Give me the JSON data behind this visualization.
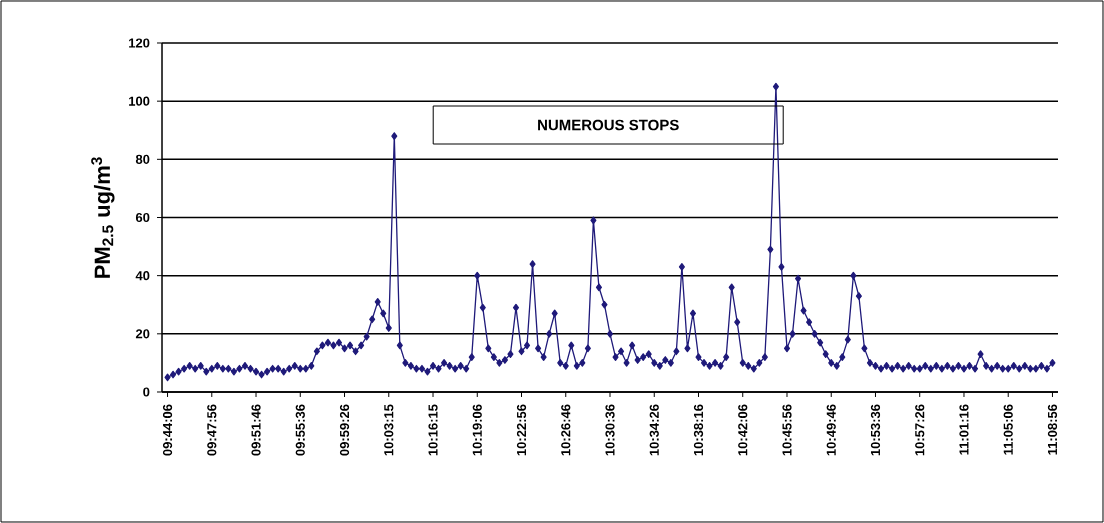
{
  "chart_data": {
    "type": "line",
    "ylabel": "PM$_{2.5}$ ug/m$^{3}$",
    "annotations": [
      "NUMEROUS STOPS"
    ],
    "categories": [
      "09:44:06",
      null,
      null,
      null,
      null,
      null,
      null,
      null,
      "09:47:56",
      null,
      null,
      null,
      null,
      null,
      null,
      null,
      "09:51:46",
      null,
      null,
      null,
      null,
      null,
      null,
      null,
      "09:55:36",
      null,
      null,
      null,
      null,
      null,
      null,
      null,
      "09:59:26",
      null,
      null,
      null,
      null,
      null,
      null,
      null,
      "10:03:15",
      null,
      null,
      null,
      null,
      null,
      null,
      null,
      "10:16:15",
      null,
      null,
      null,
      null,
      null,
      null,
      null,
      "10:19:06",
      null,
      null,
      null,
      null,
      null,
      null,
      null,
      "10:22:56",
      null,
      null,
      null,
      null,
      null,
      null,
      null,
      "10:26:46",
      null,
      null,
      null,
      null,
      null,
      null,
      null,
      "10:30:36",
      null,
      null,
      null,
      null,
      null,
      null,
      null,
      "10:34:26",
      null,
      null,
      null,
      null,
      null,
      null,
      null,
      "10:38:16",
      null,
      null,
      null,
      null,
      null,
      null,
      null,
      "10:42:06",
      null,
      null,
      null,
      null,
      null,
      null,
      null,
      "10:45:56",
      null,
      null,
      null,
      null,
      null,
      null,
      null,
      "10:49:46",
      null,
      null,
      null,
      null,
      null,
      null,
      null,
      "10:53:36",
      null,
      null,
      null,
      null,
      null,
      null,
      null,
      "10:57:26",
      null,
      null,
      null,
      null,
      null,
      null,
      null,
      "11:01:16",
      null,
      null,
      null,
      null,
      null,
      null,
      null,
      "11:05:06",
      null,
      null,
      null,
      null,
      null,
      null,
      null,
      "11:08:56"
    ],
    "series": [
      {
        "color": "#1f1a7a",
        "values": [
          5,
          6,
          7,
          8,
          9,
          8,
          9,
          7,
          8,
          9,
          8,
          8,
          7,
          8,
          9,
          8,
          7,
          6,
          7,
          8,
          8,
          7,
          8,
          9,
          8,
          8,
          9,
          14,
          16,
          17,
          16,
          17,
          15,
          16,
          14,
          16,
          19,
          25,
          31,
          27,
          22,
          88,
          16,
          10,
          9,
          8,
          8,
          7,
          9,
          8,
          10,
          9,
          8,
          9,
          8,
          12,
          40,
          29,
          15,
          12,
          10,
          11,
          13,
          29,
          14,
          16,
          44,
          15,
          12,
          20,
          27,
          10,
          9,
          16,
          9,
          10,
          15,
          59,
          36,
          30,
          20,
          12,
          14,
          10,
          16,
          11,
          12,
          13,
          10,
          9,
          11,
          10,
          14,
          43,
          15,
          27,
          12,
          10,
          9,
          10,
          9,
          12,
          36,
          24,
          10,
          9,
          8,
          10,
          12,
          49,
          105,
          43,
          15,
          20,
          39,
          28,
          24,
          20,
          17,
          13,
          10,
          9,
          12,
          18,
          40,
          33,
          15,
          10,
          9,
          8,
          9,
          8,
          9,
          8,
          9,
          8,
          8,
          9,
          8,
          9,
          8,
          9,
          8,
          9,
          8,
          9,
          8,
          13,
          9,
          8,
          9,
          8,
          8,
          9,
          8,
          9,
          8,
          8,
          9,
          8,
          10
        ]
      }
    ],
    "ylim": [
      0,
      120
    ],
    "yticks": [
      0,
      20,
      40,
      60,
      80,
      100,
      120
    ],
    "grid": "y",
    "marker": "diamond",
    "line_style": "solid"
  }
}
